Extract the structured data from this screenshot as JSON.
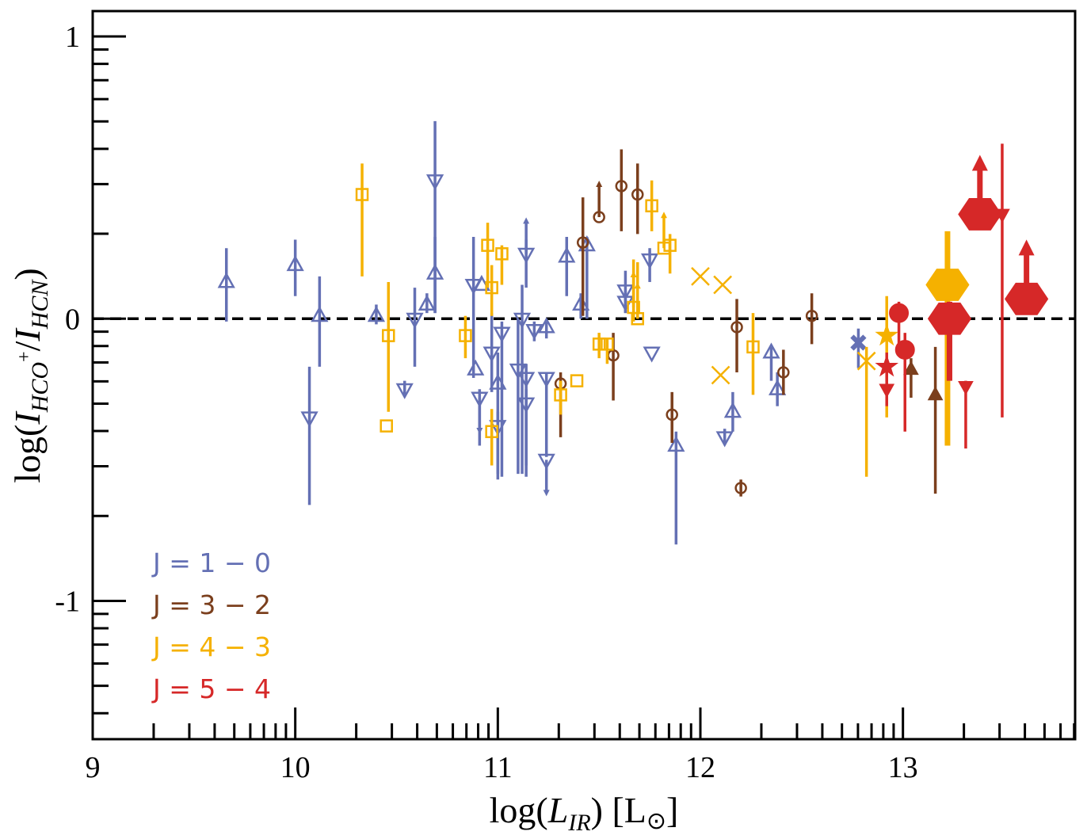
{
  "chart_data": {
    "type": "scatter",
    "xlabel": [
      "log(",
      "L",
      "IR",
      ") [L",
      "⊙",
      "]"
    ],
    "ylabel": [
      "log(",
      "I",
      "HCO",
      "+",
      "/",
      "I",
      "HCN",
      ")"
    ],
    "xlim": [
      9,
      13.85
    ],
    "ylim": [
      -1.49,
      1.09
    ],
    "xticks": [
      9,
      10,
      11,
      12,
      13
    ],
    "yticks": [
      -1,
      0,
      1
    ],
    "xminorticks": [
      9.301,
      9.477,
      9.602,
      9.699,
      9.778,
      9.845,
      9.903,
      9.954,
      10.301,
      10.477,
      10.602,
      10.699,
      10.778,
      10.845,
      10.903,
      10.954,
      11.301,
      11.477,
      11.602,
      11.699,
      11.778,
      11.845,
      11.903,
      11.954,
      12.301,
      12.477,
      12.602,
      12.699,
      12.778,
      12.845,
      12.903,
      12.954,
      13.301,
      13.477,
      13.602,
      13.699,
      13.778,
      13.845
    ],
    "yminorticks": [
      0.301,
      0.477,
      0.602,
      0.699,
      0.778,
      0.845,
      0.903,
      0.954,
      -0.699,
      -0.523,
      -0.398,
      -0.301,
      -0.222,
      -0.155,
      -0.097,
      -0.046,
      -1.398,
      -1.301,
      -1.222,
      -1.155,
      -1.097,
      -1.046
    ],
    "hline": 0,
    "legend": "lower left",
    "series": [
      {
        "name": "J = 1 − 0",
        "color": "#6470b4",
        "x": [
          9.66,
          10.0,
          10.12,
          10.07,
          10.4,
          10.54,
          10.59,
          10.65,
          10.69,
          10.69,
          10.88,
          10.89,
          10.91,
          10.92,
          10.97,
          11.0,
          11.0,
          11.02,
          11.1,
          11.12,
          11.14,
          11.14,
          11.14,
          11.18,
          11.24,
          11.24,
          11.24,
          11.34,
          11.41,
          11.44,
          11.63,
          11.63,
          11.75,
          11.76,
          11.88,
          12.12,
          12.16,
          12.35,
          12.38,
          12.78
        ],
        "values": [
          0.13,
          0.19,
          0.01,
          -0.35,
          0.01,
          -0.25,
          0.0,
          0.05,
          0.16,
          0.49,
          0.12,
          -0.18,
          -0.28,
          0.12,
          -0.12,
          -0.23,
          -0.38,
          -0.05,
          -0.18,
          0.0,
          -0.21,
          -0.3,
          0.23,
          -0.04,
          -0.03,
          -0.21,
          -0.5,
          0.22,
          0.05,
          0.26,
          0.1,
          0.06,
          0.21,
          -0.12,
          -0.45,
          -0.42,
          -0.33,
          -0.12,
          -0.25,
          -0.085
        ],
        "yerr_lo": [
          0.14,
          0.11,
          0.18,
          0.31,
          0.03,
          0.02,
          0.17,
          0.03,
          0.14,
          0.47,
          0.33,
          null,
          0.17,
          null,
          0.14,
          0.34,
          0.17,
          0.51,
          0.37,
          0.55,
          0.31,
          0.26,
          0.12,
          0.04,
          0.04,
          0.28,
          null,
          0.14,
          0.05,
          0.26,
          0.08,
          0.04,
          0.08,
          null,
          0.35,
          0.02,
          0.07,
          0.1,
          0.06,
          0.09
        ],
        "yerr_hi": [
          0.12,
          0.09,
          0.14,
          0.18,
          0.04,
          0.03,
          0.11,
          0.04,
          0.13,
          0.21,
          0.17,
          null,
          0.03,
          null,
          0.14,
          0.11,
          0.05,
          0.04,
          0.18,
          0.12,
          0.05,
          0.05,
          0.05,
          0.03,
          0.02,
          0.02,
          null,
          0.07,
          0.04,
          0.03,
          0.07,
          0.04,
          0.04,
          null,
          0.05,
          0.03,
          0.07,
          0.02,
          0.06,
          0.05
        ],
        "markers": [
          "^",
          "^",
          "^",
          "v",
          "^",
          "v",
          "v",
          "^",
          "^",
          "v",
          "v",
          "^",
          "v",
          "^",
          "v",
          "^",
          "v",
          "v",
          "v",
          "v",
          "v",
          "v",
          "v",
          "v",
          "^",
          "v",
          "v",
          "^",
          "^",
          "^",
          "v",
          "v",
          "v",
          "v",
          "^",
          "v",
          "^",
          "^",
          "^",
          "X"
        ],
        "arrows": [
          null,
          null,
          null,
          null,
          null,
          null,
          null,
          null,
          null,
          null,
          null,
          null,
          "down",
          null,
          null,
          null,
          null,
          null,
          null,
          null,
          null,
          null,
          "up",
          null,
          null,
          null,
          "down",
          null,
          null,
          null,
          null,
          null,
          null,
          null,
          null,
          null,
          null,
          null,
          null,
          null
        ]
      },
      {
        "name": "J = 3 − 2",
        "color": "#7b3f1d",
        "x": [
          11.31,
          11.42,
          11.5,
          11.61,
          11.69,
          11.57,
          11.86,
          12.18,
          12.2,
          12.41,
          12.55,
          13.04,
          13.16
        ],
        "values": [
          -0.23,
          0.27,
          0.36,
          0.47,
          0.44,
          -0.13,
          -0.34,
          -0.03,
          -0.6,
          -0.19,
          0.01,
          -0.18,
          -0.27
        ],
        "yerr_lo": [
          0.19,
          0.26,
          null,
          0.16,
          0.14,
          0.16,
          0.1,
          0.16,
          0.03,
          0.08,
          0.1,
          0.1,
          0.35
        ],
        "yerr_hi": [
          0.04,
          0.16,
          null,
          0.13,
          0.11,
          0.08,
          0.08,
          0.1,
          0.03,
          0.08,
          0.08,
          0.04,
          0.17
        ],
        "markers": [
          "o",
          "o",
          "o",
          "o",
          "o",
          "o",
          "o",
          "o",
          "o",
          "o",
          "o",
          "^f",
          "^f"
        ],
        "arrows": [
          null,
          null,
          "up",
          null,
          null,
          null,
          null,
          null,
          null,
          null,
          null,
          null,
          null
        ]
      },
      {
        "name": "J = 4 − 3",
        "color": "#f5b100",
        "x": [
          10.33,
          10.46,
          10.45,
          10.84,
          10.95,
          10.97,
          10.97,
          11.02,
          11.31,
          11.39,
          11.5,
          11.54,
          11.67,
          11.69,
          11.76,
          11.82,
          11.85,
          12.26,
          12.0,
          12.11,
          12.1,
          12.82,
          12.92,
          13.22
        ],
        "values": [
          0.44,
          -0.06,
          -0.38,
          -0.06,
          0.26,
          0.11,
          -0.4,
          0.23,
          -0.27,
          -0.22,
          -0.09,
          -0.09,
          0.04,
          0.0,
          0.4,
          0.25,
          0.26,
          -0.1,
          0.15,
          0.12,
          -0.2,
          -0.15,
          -0.06,
          0.12
        ],
        "yerr_lo": [
          0.29,
          0.27,
          null,
          0.08,
          0.15,
          0.1,
          0.12,
          0.11,
          0.07,
          null,
          0.05,
          0.07,
          0.05,
          0.0,
          0.09,
          null,
          0.1,
          0.17,
          null,
          null,
          null,
          0.41,
          0.29,
          0.57
        ],
        "yerr_hi": [
          0.11,
          0.19,
          null,
          0.07,
          0.08,
          0.08,
          0.08,
          0.03,
          0.05,
          null,
          0.04,
          0.02,
          0.17,
          0.2,
          0.09,
          null,
          0.04,
          0.12,
          null,
          null,
          null,
          0.05,
          0.14,
          0.19
        ],
        "markers": [
          "s",
          "s",
          "s",
          "s",
          "s",
          "s",
          "s",
          "s",
          "s",
          "s",
          "s",
          "s",
          "s",
          "s",
          "s",
          "s",
          "s",
          "s",
          "x",
          "x",
          "x",
          "x",
          "*",
          "h"
        ],
        "arrows": [
          null,
          null,
          null,
          null,
          null,
          null,
          null,
          null,
          null,
          null,
          null,
          null,
          "up",
          "up",
          null,
          "up",
          null,
          null,
          null,
          null,
          null,
          null,
          null,
          null
        ]
      },
      {
        "name": "J = 5 − 4",
        "color": "#d62828",
        "x": [
          12.98,
          13.01,
          12.92,
          12.92,
          13.31,
          13.23,
          13.38,
          13.49,
          13.61
        ],
        "values": [
          0.02,
          -0.11,
          -0.17,
          -0.25,
          -0.24,
          0.0,
          0.37,
          0.37,
          0.07
        ],
        "yerr_lo": [
          0.15,
          0.29,
          0.05,
          0.06,
          0.22,
          0.22,
          null,
          0.72,
          null
        ],
        "yerr_hi": [
          0.04,
          0.06,
          0.05,
          0.06,
          0.02,
          0.06,
          null,
          0.25,
          null
        ],
        "markers": [
          "of",
          "of",
          "*",
          "vf",
          "vf",
          "h",
          "h",
          "vf",
          "h"
        ],
        "arrows": [
          null,
          null,
          null,
          null,
          null,
          null,
          "up",
          null,
          "up"
        ]
      }
    ]
  }
}
